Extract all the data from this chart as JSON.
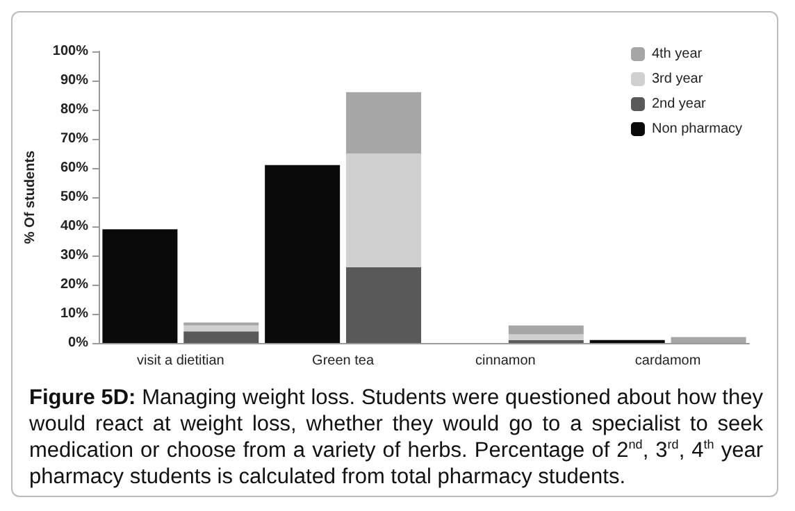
{
  "chart_data": {
    "type": "bar",
    "title": "Figure 5D:",
    "annotations": [
      "Managing weight loss. Students were questioned about how they would react at weight loss, whether they would go to a specialist to seek medication or choose from a variety of herbs. Percentage of 2$^{nd}$, 3$^{rd}$, 4$^{th}$ year pharmacy students is calculated from total pharmacy students."
    ],
    "ylabel": "% Of students",
    "categories": [
      "visit a dietitian",
      null,
      "Green tea",
      null,
      "cinnamon",
      null,
      "cardamom",
      null
    ],
    "stacked": true,
    "series": [
      {
        "name": "Non pharmacy",
        "color": "#0a0a0a",
        "values": [
          39,
          null,
          61,
          null,
          null,
          null,
          1,
          null
        ]
      },
      {
        "name": "2nd year",
        "color": "#595959",
        "values": [
          null,
          4,
          null,
          26,
          null,
          1,
          null,
          0
        ]
      },
      {
        "name": "3rd year",
        "color": "#d0d0d0",
        "values": [
          null,
          2,
          null,
          39,
          null,
          2,
          null,
          0
        ]
      },
      {
        "name": "4th year",
        "color": "#a6a6a6",
        "values": [
          null,
          1,
          null,
          21,
          null,
          3,
          null,
          2
        ]
      }
    ],
    "ylim": [
      0,
      100
    ],
    "yticks": [
      {
        "value": 0,
        "label": "0%"
      },
      {
        "value": 10,
        "label": "10%"
      },
      {
        "value": 20,
        "label": "20%"
      },
      {
        "value": 30,
        "label": "30%"
      },
      {
        "value": 40,
        "label": "40%"
      },
      {
        "value": 50,
        "label": "50%"
      },
      {
        "value": 60,
        "label": "60%"
      },
      {
        "value": 70,
        "label": "70%"
      },
      {
        "value": 80,
        "label": "80%"
      },
      {
        "value": 90,
        "label": "90%"
      },
      {
        "value": 100,
        "label": "100%"
      }
    ],
    "grid": false,
    "legend": "top right"
  }
}
